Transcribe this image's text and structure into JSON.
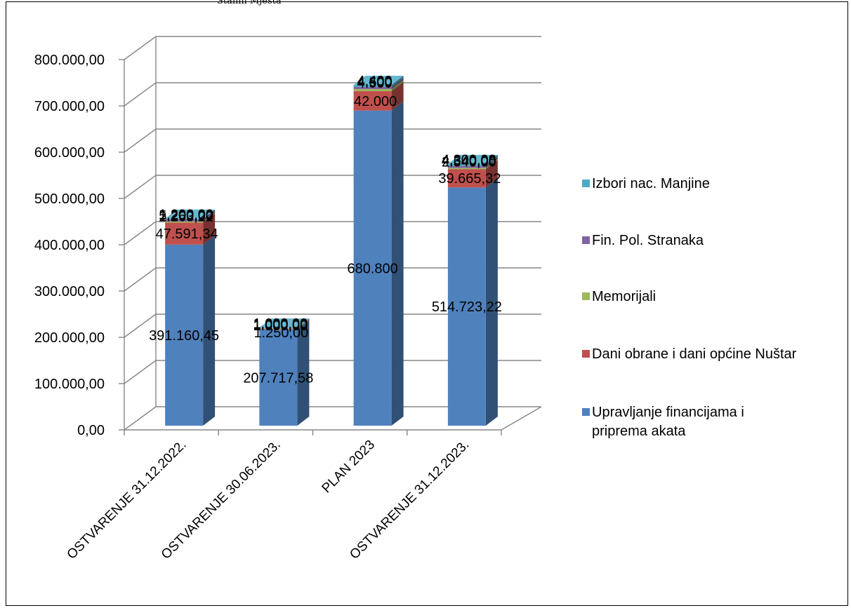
{
  "caption": "Stanni Mjesta",
  "colors": {
    "Upravljanje": "#4f81bd",
    "Dani": "#c0504d",
    "Memorijali": "#9bbb59",
    "FinPol": "#8064a2",
    "Izbori": "#4bacc6",
    "grid": "#868686"
  },
  "chart_data": {
    "type": "bar",
    "stacked": true,
    "three_d": true,
    "ylim": [
      0,
      800000
    ],
    "yticks": [
      0,
      100000,
      200000,
      300000,
      400000,
      500000,
      600000,
      700000,
      800000
    ],
    "ytick_labels": [
      "0,00",
      "100.000,00",
      "200.000,00",
      "300.000,00",
      "400.000,00",
      "500.000,00",
      "600.000,00",
      "700.000,00",
      "800.000,00"
    ],
    "categories": [
      "OSTVARENJE 31.12.2022.",
      "OSTVARENJE 30.06.2023.",
      "PLAN 2023",
      "OSTVARENJE 31.12.2023."
    ],
    "legend_position": "right",
    "series": [
      {
        "name": "Upravljanje financijama i priprema akata",
        "legend_lines": [
          "Upravljanje financijama i",
          "priprema akata"
        ],
        "color_key": "Upravljanje",
        "values": [
          391160.45,
          207717.58,
          680800,
          514723.22
        ],
        "labels": [
          "391.160,45",
          "207.717,58",
          "680.800",
          "514.723,22"
        ]
      },
      {
        "name": "Dani obrane i dani općine Nuštar",
        "legend_lines": [
          "Dani obrane i dani općine Nuštar"
        ],
        "color_key": "Dani",
        "values": [
          47591.34,
          1250,
          42000,
          39665.32
        ],
        "labels": [
          "47.591,34",
          "1.250,00",
          "42.000",
          "39.665,32"
        ]
      },
      {
        "name": "Memorijali",
        "legend_lines": [
          "Memorijali"
        ],
        "color_key": "Memorijali",
        "values": [
          2263.22,
          1000,
          4500,
          2540
        ],
        "labels": [
          "2.263,22",
          "1.000,00",
          "4.500",
          "2.540,00"
        ]
      },
      {
        "name": "Fin. Pol. Stranaka",
        "legend_lines": [
          "Fin. Pol. Stranaka"
        ],
        "color_key": "FinPol",
        "values": [
          5200,
          1000,
          4600,
          4340
        ],
        "labels": [
          "5.200,00",
          "1.000,00",
          "4.600",
          "4.340,00"
        ]
      },
      {
        "name": "Izbori nac. Manjine",
        "legend_lines": [
          "Izbori nac. Manjine"
        ],
        "color_key": "Izbori",
        "values": [
          1200,
          1000,
          4400,
          4300.08
        ],
        "labels": [
          "1.200,00",
          "1.000,00",
          "4.400",
          "4.300,08"
        ]
      }
    ]
  }
}
